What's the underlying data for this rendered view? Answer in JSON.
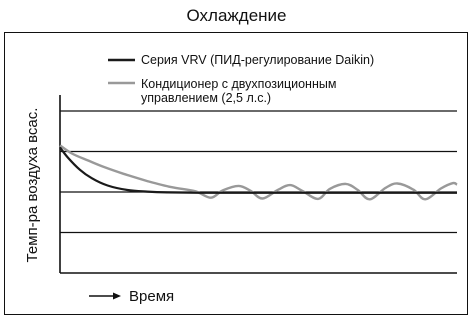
{
  "chart_data": {
    "type": "line",
    "title": "Охлаждение",
    "ylabel": "Темп-ра воздуха всас.",
    "xlabel": "Время",
    "grid": true,
    "ylim": [
      0,
      4
    ],
    "xlim": [
      0,
      100
    ],
    "gridlines_y": [
      1,
      2,
      3,
      4
    ],
    "legend_position": "top",
    "series": [
      {
        "name": "Серия VRV (ПИД-регулирование Daikin)",
        "color": "#1a1a1a",
        "x": [
          0,
          2,
          5,
          8,
          12,
          17,
          22,
          27,
          35,
          45,
          55,
          70,
          85,
          100
        ],
        "y": [
          3.1,
          2.85,
          2.55,
          2.34,
          2.16,
          2.05,
          2.01,
          1.99,
          1.98,
          1.98,
          1.98,
          1.98,
          1.98,
          1.98
        ]
      },
      {
        "name": "Кондиционер с двухпозиционным управлением (2,5 л.с.)",
        "color": "#999999",
        "x": [
          0,
          3,
          7,
          11,
          16,
          22,
          28,
          34,
          38,
          41,
          45,
          48,
          51,
          55,
          58,
          61,
          65,
          68,
          72,
          75,
          78,
          82,
          85,
          89,
          92,
          96,
          99,
          100
        ],
        "y": [
          3.15,
          2.95,
          2.78,
          2.62,
          2.45,
          2.27,
          2.12,
          2.02,
          1.86,
          2.04,
          2.15,
          2.03,
          1.84,
          2.06,
          2.17,
          2.03,
          1.83,
          2.08,
          2.2,
          2.05,
          1.82,
          2.1,
          2.21,
          2.06,
          1.82,
          2.09,
          2.22,
          2.18
        ]
      }
    ]
  }
}
